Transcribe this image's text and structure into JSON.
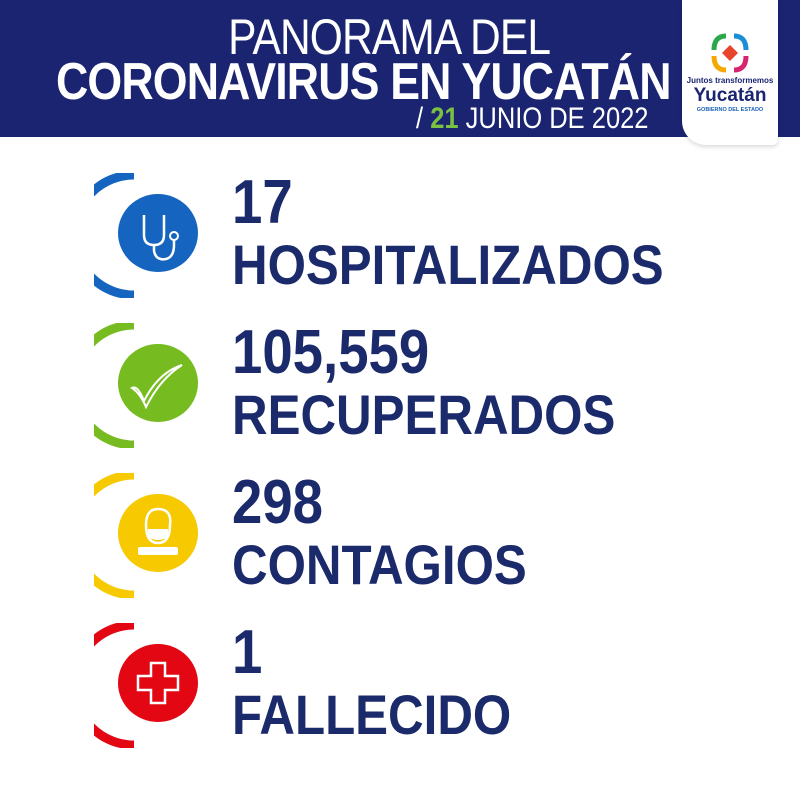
{
  "header": {
    "title_line1": "PANORAMA DEL",
    "title_line2": "CORONAVIRUS EN YUCATÁN",
    "date_slash": "/",
    "date_day": "21",
    "date_rest": "JUNIO DE 2022"
  },
  "logo": {
    "tagline": "Juntos transformemos",
    "name": "Yucatán",
    "subtitle": "GOBIERNO DEL ESTADO"
  },
  "stats": [
    {
      "value": "17",
      "label": "HOSPITALIZADOS",
      "icon": "stethoscope-icon",
      "color": "#1565c0"
    },
    {
      "value": "105,559",
      "label": "RECUPERADOS",
      "icon": "checkmark-icon",
      "color": "#76bc21"
    },
    {
      "value": "298",
      "label": "CONTAGIOS",
      "icon": "masked-person-icon",
      "color": "#f6c900"
    },
    {
      "value": "1",
      "label": "FALLECIDO",
      "icon": "medical-cross-icon",
      "color": "#e30613"
    }
  ]
}
